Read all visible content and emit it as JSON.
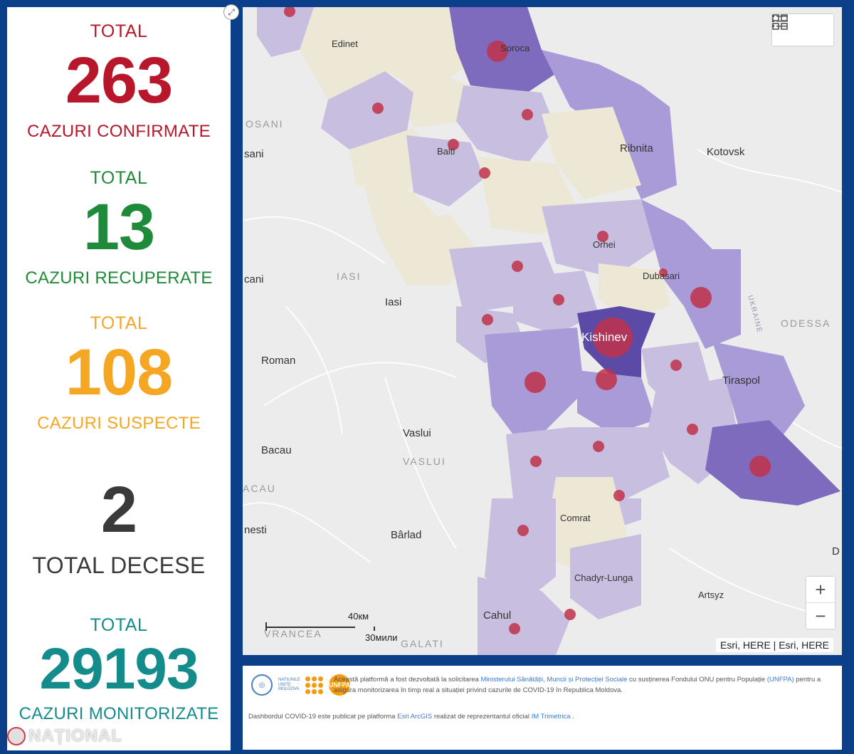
{
  "stats": {
    "confirmed": {
      "top": "TOTAL",
      "value": "263",
      "bottom": "CAZURI CONFIRMATE"
    },
    "recovered": {
      "top": "TOTAL",
      "value": "13",
      "bottom": "CAZURI RECUPERATE"
    },
    "suspected": {
      "top": "TOTAL",
      "value": "108",
      "bottom": "CAZURI SUSPECTE"
    },
    "deaths": {
      "value": "2",
      "bottom": "TOTAL DECESE"
    },
    "monitored": {
      "top": "TOTAL",
      "value": "29193",
      "bottom": "CAZURI MONITORIZATE"
    }
  },
  "colors": {
    "confirmed": "#b8162b",
    "recovered": "#1f8a3a",
    "suspected": "#f5a623",
    "deaths": "#3a3a3a",
    "monitored": "#158c8c"
  },
  "watermark": "NAȚIONAL",
  "map": {
    "cities": [
      "Edinet",
      "Soroca",
      "Balti",
      "Ribnita",
      "Kotovsk",
      "Orhei",
      "Dubasari",
      "Iasi",
      "Kishinev",
      "Tiraspol",
      "Roman",
      "Vaslui",
      "Bacau",
      "Bârlad",
      "Comrat",
      "Chadyr-Lunga",
      "Artsyz",
      "Cahul",
      "ODESSA",
      "IASI",
      "VASLUI",
      "GALATI",
      "VRANCEA",
      "ACAU",
      "OSANI",
      "sani",
      "cani",
      "nesti",
      "D",
      "UKRAINE"
    ],
    "attribution": "Esri, HERE | Esri, HERE",
    "scale_km": "40км",
    "scale_mi": "30мили",
    "zoom_in": "+",
    "zoom_out": "−",
    "icons": [
      "list-icon",
      "grid-icon",
      "expand-icon"
    ]
  },
  "footer": {
    "un_label": "NATIUNILE UNITE MOLDOVA",
    "unfpa_label": "UNFPA",
    "line1_a": "Această platformă a fost dezvoltată la solicitarea ",
    "line1_link": "Ministerului Sănătății, Muncii și Protecției Sociale",
    "line1_b": " cu susținerea Fondului ONU pentru Populație ",
    "line1_link2": "(UNFPA)",
    "line1_c": " pentru a asigura monitorizarea în timp real a situației privind cazurile de  COVID-19 în Republica Moldova.",
    "line2_a": "Dashbordul COVID-19 este publicat pe platforma ",
    "line2_link": "Esri ArcGIS",
    "line2_b": " realizat de reprezentantul oficial ",
    "line2_link2": "IM Trimetrica",
    "line2_c": " ."
  }
}
